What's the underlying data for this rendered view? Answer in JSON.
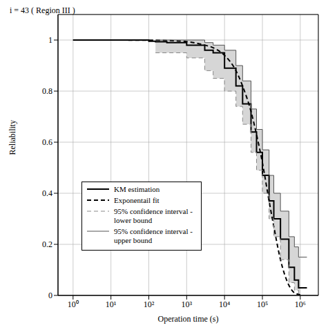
{
  "chart_data": {
    "type": "line",
    "title": "i = 43 ( Region III )",
    "x_label": "Operation time (s)",
    "y_label": "Reliability",
    "log": "x",
    "grid": true,
    "legend": "lower left",
    "xlim": [
      0.4,
      3000000
    ],
    "ylim": [
      0,
      1.1
    ],
    "xticks": [
      {
        "value": 1,
        "label": "10⁰"
      },
      {
        "value": 10,
        "label": "10¹"
      },
      {
        "value": 100,
        "label": "10²"
      },
      {
        "value": 1000,
        "label": "10³"
      },
      {
        "value": 10000,
        "label": "10⁴"
      },
      {
        "value": 100000,
        "label": "10⁵"
      },
      {
        "value": 1000000,
        "label": "10⁶"
      }
    ],
    "yticks": [
      0,
      0.2,
      0.4,
      0.6,
      0.8,
      1
    ],
    "x": [
      1,
      10,
      100,
      150,
      300,
      1000,
      3000,
      5000,
      10000,
      20000,
      30000,
      50000,
      70000,
      100000,
      150000,
      200000,
      300000,
      500000,
      700000,
      900000,
      1000000,
      1500000
    ],
    "series": [
      {
        "name": "KM estimation",
        "color": "#000000",
        "type": "step",
        "line_style": "solid",
        "values": [
          1,
          1,
          0.995,
          0.993,
          0.99,
          0.98,
          0.96,
          0.95,
          0.89,
          0.82,
          0.75,
          0.64,
          0.56,
          0.47,
          0.37,
          0.3,
          0.22,
          0.11,
          0.06,
          0.03,
          0.03,
          0.03
        ]
      },
      {
        "name": "Exponentail fit",
        "color": "#000000",
        "type": "line",
        "line_style": "dashed",
        "values": [
          1,
          1,
          0.999,
          0.999,
          0.998,
          0.994,
          0.98,
          0.97,
          0.94,
          0.88,
          0.82,
          0.72,
          0.63,
          0.52,
          0.37,
          0.27,
          0.14,
          0.04,
          0.01,
          0.004,
          0.002,
          null
        ]
      },
      {
        "name": "95% confidence interval - lower bound",
        "color": "#888888",
        "type": "step",
        "line_style": "dashed",
        "values": [
          null,
          null,
          null,
          0.95,
          0.95,
          0.93,
          0.88,
          0.85,
          0.8,
          0.74,
          0.67,
          0.56,
          0.49,
          0.4,
          0.3,
          0.23,
          0.14,
          0.05,
          0.02,
          0,
          0,
          null
        ]
      },
      {
        "name": "95% confidence interval - upper bound",
        "color": "#555555",
        "type": "step",
        "line_style": "solid",
        "values": [
          null,
          null,
          null,
          1,
          1,
          1,
          0.99,
          0.98,
          0.96,
          0.9,
          0.84,
          0.73,
          0.65,
          0.57,
          0.47,
          0.4,
          0.33,
          0.23,
          0.19,
          0.15,
          0.15,
          0.15
        ]
      }
    ]
  }
}
